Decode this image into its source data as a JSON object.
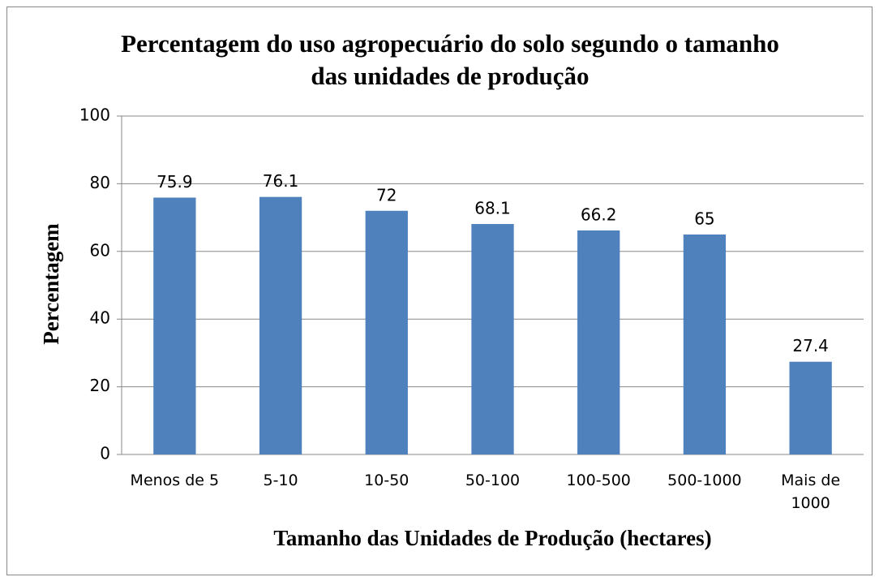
{
  "chart_data": {
    "type": "bar",
    "title": "Percentagem do uso agropecuário do solo segundo o tamanho das unidades de produção",
    "x_label": "Tamanho das Unidades de Produção (hectares)",
    "y_label": "Percentagem",
    "categories": [
      "Menos de 5",
      "5-10",
      "10-50",
      "50-100",
      "100-500",
      "500-1000",
      "Mais de 1000"
    ],
    "values": [
      75.9,
      76.1,
      72,
      68.1,
      66.2,
      65,
      27.4
    ],
    "color": "#4f81bd",
    "ylim": [
      0,
      100
    ],
    "yticks": [
      0,
      20,
      40,
      60,
      80,
      100
    ],
    "grid": true
  }
}
